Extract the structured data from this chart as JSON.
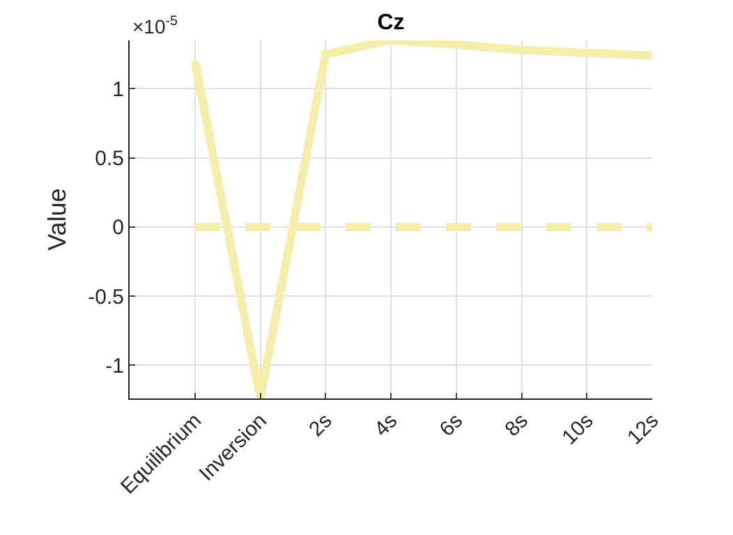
{
  "chart_data": {
    "type": "line",
    "title": "Cz",
    "ylabel": "Value",
    "annotations": [
      "×10$^{-5}$"
    ],
    "categories": [
      "Equilibrium",
      "Inversion",
      "2s",
      "4s",
      "6s",
      "8s",
      "10s",
      "12s"
    ],
    "series": [
      {
        "color": "#f5eeaa",
        "line_style": "solid",
        "values": [
          1.2,
          -1.24,
          1.25,
          1.35,
          1.32,
          1.28,
          1.26,
          1.24
        ]
      },
      {
        "color": "#f5eeaa",
        "line_style": "dashed",
        "values": [
          0,
          0,
          0,
          0,
          0,
          0,
          0,
          0
        ]
      }
    ],
    "ylim": [
      -1.24,
      1.35
    ],
    "yticks": [
      -1,
      -0.5,
      0,
      0.5,
      1
    ],
    "grid": true,
    "marker": "none"
  }
}
